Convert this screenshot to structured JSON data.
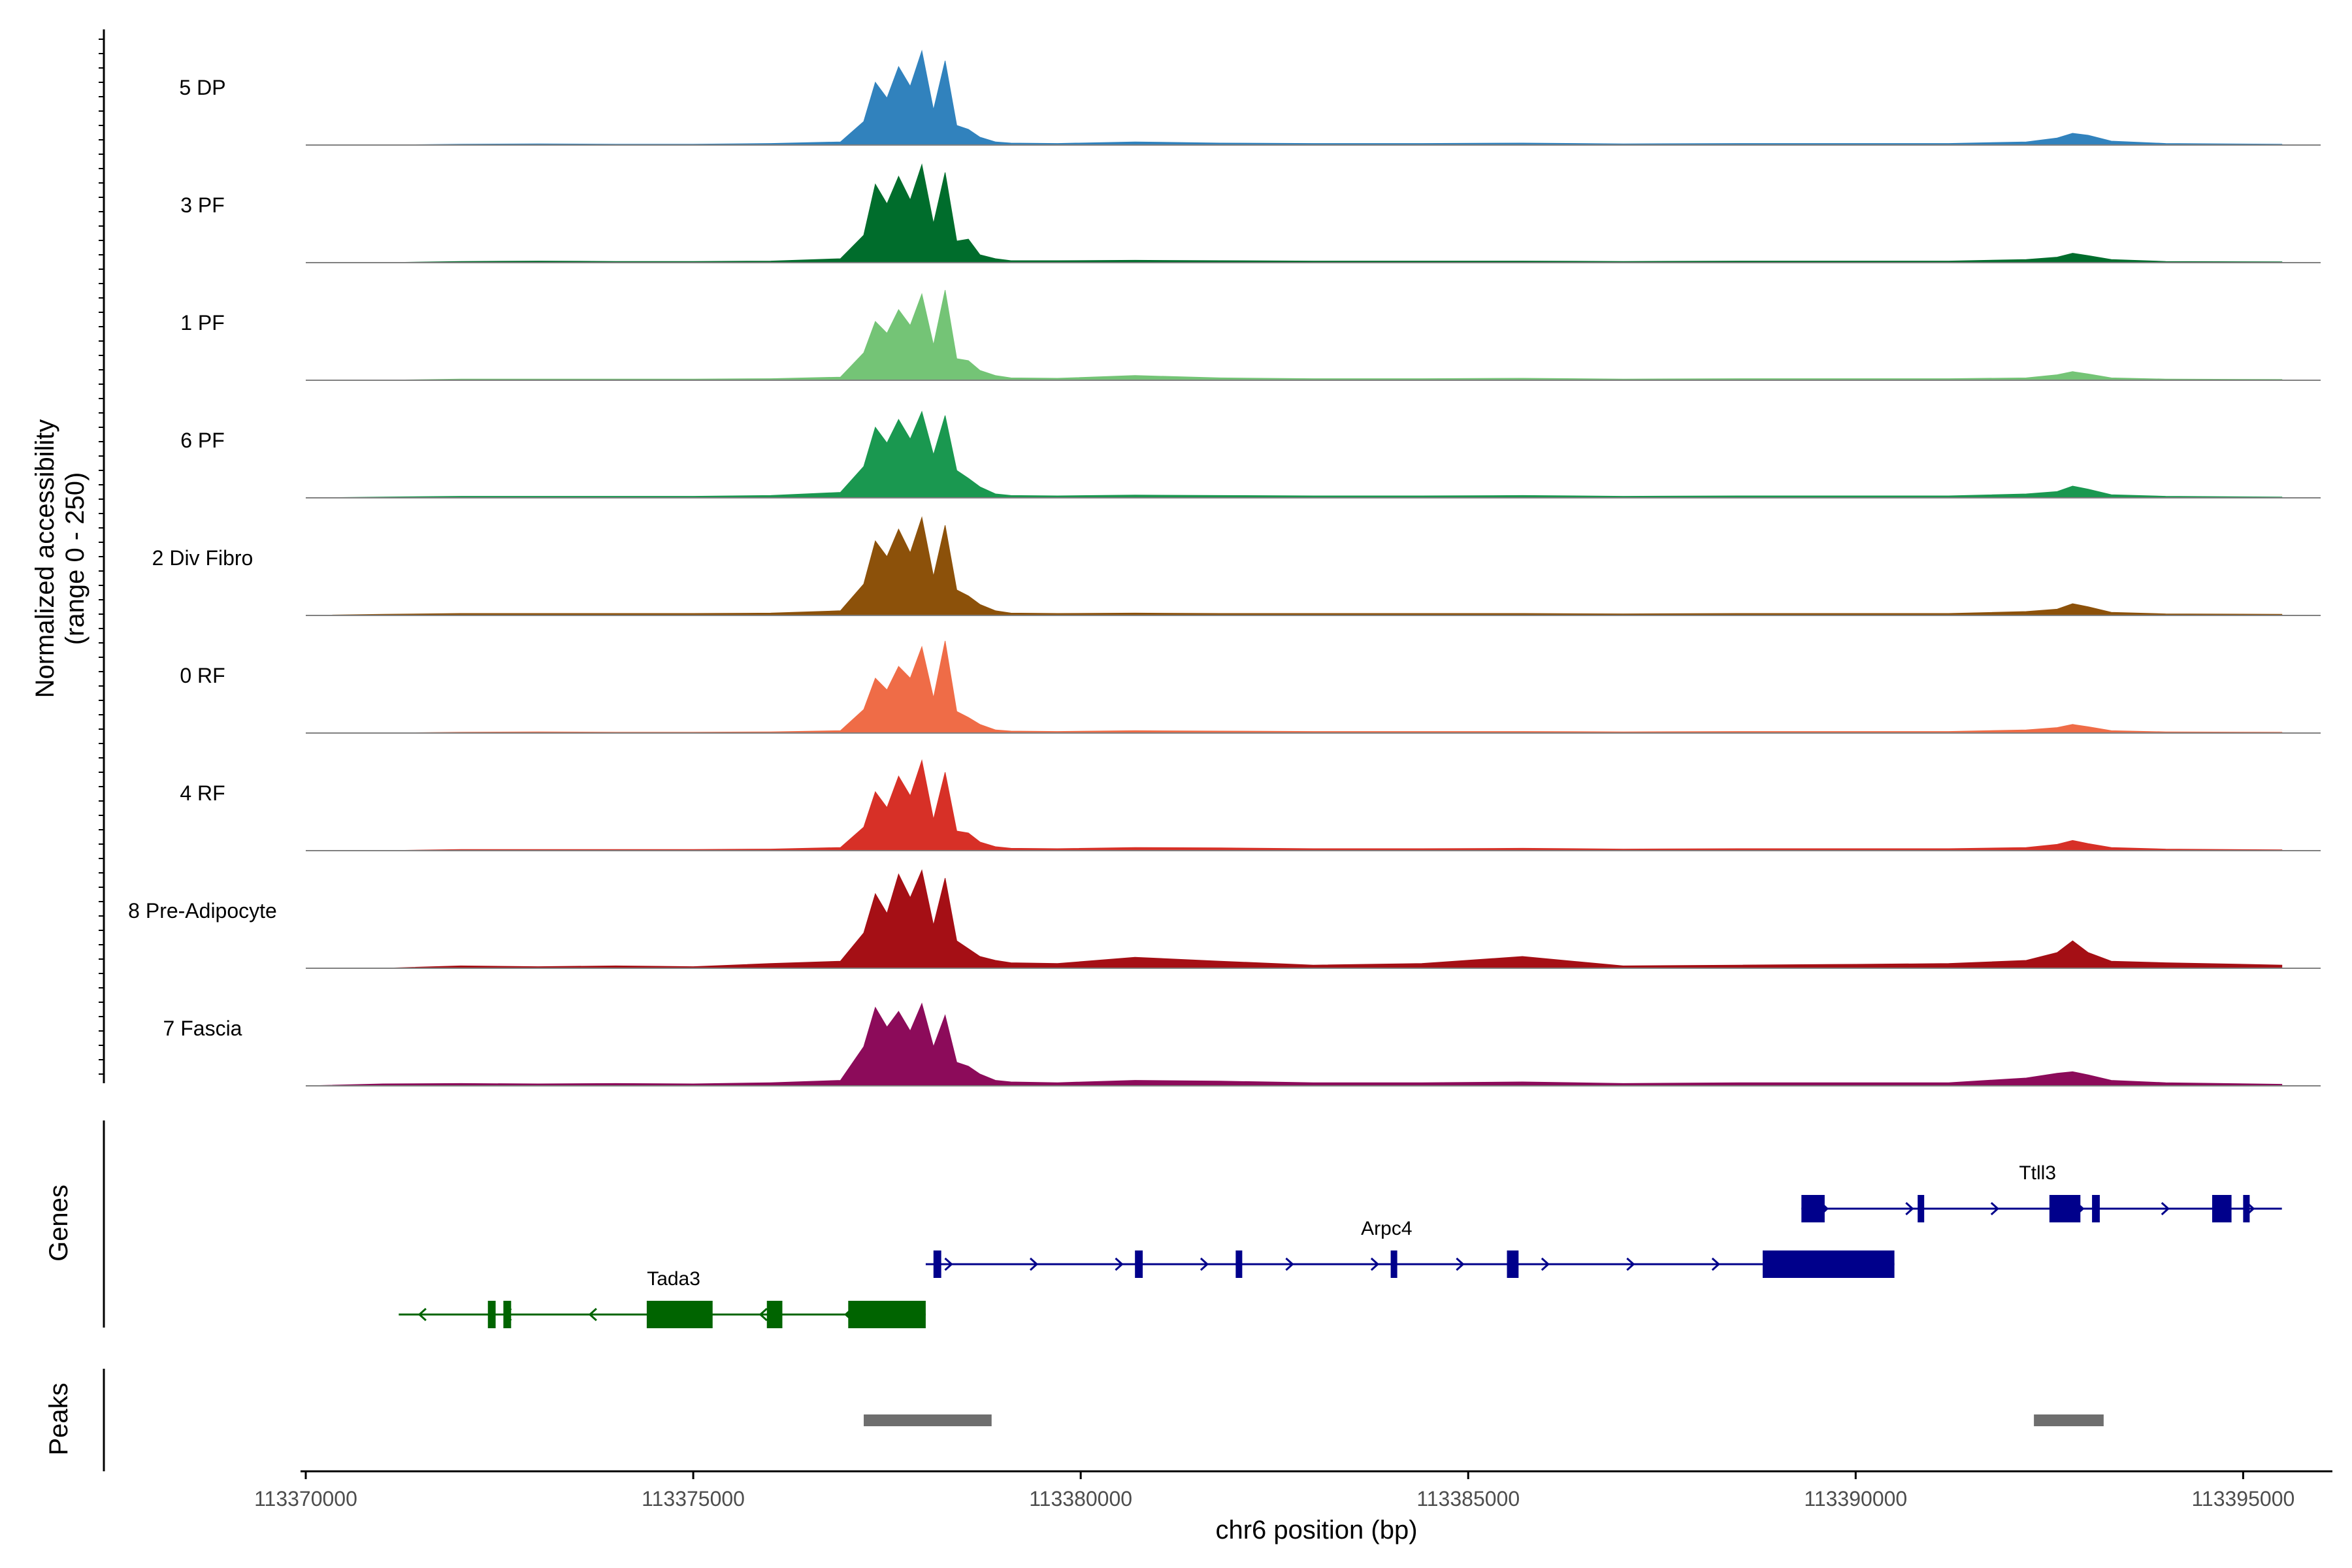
{
  "chart_data": {
    "type": "area",
    "title": "",
    "ylabel": "Normalized accessibility",
    "ylabel_range": "(range 0 - 250)",
    "xlabel": "chr6 position (bp)",
    "chromosome": "chr6",
    "xlim": [
      113370000,
      113396000
    ],
    "ylim": [
      0,
      250
    ],
    "x_ticks": [
      113370000,
      113375000,
      113380000,
      113385000,
      113390000,
      113395000
    ],
    "x_tick_labels": [
      "113370000",
      "113375000",
      "113380000",
      "113385000",
      "113390000",
      "113395000"
    ],
    "coverage_x": [
      113370000,
      113371000,
      113372000,
      113373000,
      113374000,
      113375000,
      113376000,
      113376900,
      113377200,
      113377350,
      113377500,
      113377650,
      113377800,
      113377950,
      113378100,
      113378250,
      113378400,
      113378550,
      113378700,
      113378900,
      113379100,
      113379700,
      113380700,
      113381800,
      113383000,
      113384400,
      113385700,
      113387000,
      113388500,
      113390000,
      113391200,
      113392200,
      113392600,
      113392800,
      113393000,
      113393300,
      113394000,
      113395500
    ],
    "series": [
      {
        "name": "5 DP",
        "color": "#3182bd",
        "values": [
          0,
          0,
          2,
          3,
          2,
          2,
          4,
          8,
          60,
          160,
          120,
          200,
          150,
          240,
          90,
          215,
          50,
          40,
          20,
          8,
          5,
          4,
          8,
          5,
          4,
          4,
          5,
          3,
          4,
          4,
          4,
          8,
          18,
          30,
          25,
          10,
          4,
          2
        ]
      },
      {
        "name": "3 PF",
        "color": "#006d2c",
        "values": [
          0,
          0,
          3,
          4,
          3,
          3,
          4,
          10,
          70,
          200,
          150,
          220,
          160,
          250,
          100,
          230,
          55,
          60,
          20,
          10,
          5,
          5,
          6,
          5,
          4,
          4,
          4,
          3,
          4,
          4,
          4,
          8,
          14,
          24,
          18,
          8,
          3,
          2
        ]
      },
      {
        "name": "1 PF",
        "color": "#74c476",
        "values": [
          0,
          0,
          3,
          3,
          3,
          3,
          4,
          8,
          70,
          150,
          120,
          180,
          140,
          220,
          90,
          230,
          55,
          50,
          25,
          12,
          6,
          5,
          12,
          6,
          4,
          4,
          5,
          3,
          4,
          4,
          4,
          6,
          14,
          22,
          16,
          6,
          3,
          2
        ]
      },
      {
        "name": "6 PF",
        "color": "#1a9850",
        "values": [
          0,
          2,
          4,
          4,
          4,
          4,
          6,
          14,
          80,
          180,
          140,
          200,
          150,
          220,
          110,
          210,
          70,
          50,
          28,
          10,
          6,
          5,
          7,
          6,
          5,
          5,
          6,
          4,
          5,
          5,
          5,
          10,
          16,
          30,
          22,
          8,
          4,
          2
        ]
      },
      {
        "name": "2 Div Fibro",
        "color": "#8c510a",
        "values": [
          0,
          3,
          5,
          5,
          5,
          5,
          6,
          12,
          80,
          190,
          150,
          220,
          160,
          250,
          100,
          230,
          65,
          50,
          28,
          12,
          6,
          5,
          6,
          5,
          5,
          5,
          5,
          4,
          5,
          5,
          5,
          10,
          16,
          30,
          22,
          8,
          4,
          3
        ]
      },
      {
        "name": "0 RF",
        "color": "#ef6c47",
        "values": [
          0,
          0,
          2,
          3,
          2,
          2,
          3,
          6,
          60,
          140,
          110,
          170,
          140,
          220,
          90,
          235,
          55,
          40,
          22,
          8,
          5,
          4,
          6,
          5,
          4,
          4,
          4,
          3,
          4,
          4,
          4,
          8,
          14,
          22,
          16,
          6,
          3,
          2
        ]
      },
      {
        "name": "4 RF",
        "color": "#d73027",
        "values": [
          0,
          0,
          3,
          3,
          3,
          3,
          4,
          8,
          60,
          150,
          110,
          190,
          140,
          230,
          80,
          200,
          50,
          45,
          22,
          10,
          6,
          5,
          8,
          7,
          5,
          5,
          6,
          4,
          5,
          5,
          5,
          8,
          16,
          26,
          18,
          8,
          4,
          2
        ]
      },
      {
        "name": "8 Pre-Adipocyte",
        "color": "#a50f15",
        "values": [
          0,
          0,
          6,
          4,
          6,
          4,
          12,
          18,
          90,
          190,
          140,
          240,
          180,
          250,
          110,
          230,
          70,
          50,
          30,
          20,
          14,
          12,
          28,
          18,
          8,
          12,
          30,
          6,
          8,
          10,
          12,
          20,
          40,
          70,
          40,
          18,
          14,
          8
        ]
      },
      {
        "name": "7 Fascia",
        "color": "#8c0b5a",
        "values": [
          0,
          5,
          6,
          5,
          6,
          5,
          8,
          14,
          100,
          200,
          150,
          190,
          140,
          210,
          100,
          180,
          60,
          50,
          30,
          14,
          10,
          8,
          14,
          12,
          8,
          8,
          10,
          6,
          8,
          8,
          8,
          20,
          32,
          36,
          28,
          14,
          8,
          4
        ]
      }
    ],
    "genes": [
      {
        "name": "Tada3",
        "color": "#006400",
        "strand": "-",
        "start": 113371200,
        "end": 113378000,
        "exons": [
          [
            113372350,
            113372450
          ],
          [
            113372550,
            113372650
          ],
          [
            113374400,
            113375250
          ],
          [
            113375950,
            113376150
          ],
          [
            113377000,
            113378000
          ]
        ]
      },
      {
        "name": "Arpc4",
        "color": "#00008b",
        "strand": "+",
        "start": 113378000,
        "end": 113390500,
        "exons": [
          [
            113378100,
            113378200
          ],
          [
            113380700,
            113380800
          ],
          [
            113382000,
            113382080
          ],
          [
            113384000,
            113384080
          ],
          [
            113385500,
            113385650
          ],
          [
            113388800,
            113390500
          ]
        ]
      },
      {
        "name": "Ttll3",
        "color": "#00008b",
        "strand": "+",
        "start": 113389300,
        "end": 113395500,
        "exons": [
          [
            113389300,
            113389600
          ],
          [
            113390800,
            113390880
          ],
          [
            113392500,
            113392900
          ],
          [
            113393050,
            113393150
          ],
          [
            113394600,
            113394850
          ],
          [
            113395000,
            113395060
          ]
        ]
      }
    ],
    "peaks": [
      [
        113377200,
        113378850
      ],
      [
        113392300,
        113393200
      ]
    ],
    "panel_labels": {
      "genes": "Genes",
      "peaks": "Peaks"
    }
  }
}
